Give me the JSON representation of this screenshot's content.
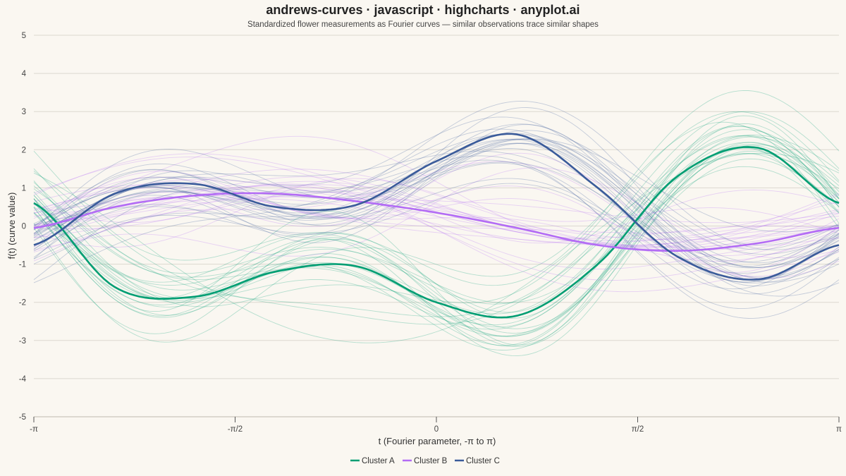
{
  "chart_data": {
    "type": "line",
    "title": "andrews-curves · javascript · highcharts · anyplot.ai",
    "subtitle": "Standardized flower measurements as Fourier curves — similar observations trace similar shapes",
    "xlabel": "t (Fourier parameter, -π to π)",
    "ylabel": "f(t) (curve value)",
    "xlim": [
      -3.14159,
      3.14159
    ],
    "ylim": [
      -5,
      5
    ],
    "x_ticks": [
      {
        "value": -3.14159,
        "label": "-π"
      },
      {
        "value": -1.5708,
        "label": "-π/2"
      },
      {
        "value": 0,
        "label": "0"
      },
      {
        "value": 1.5708,
        "label": "π/2"
      },
      {
        "value": 3.14159,
        "label": "π"
      }
    ],
    "y_ticks": [
      {
        "value": -5,
        "label": "-5"
      },
      {
        "value": -4,
        "label": "-4"
      },
      {
        "value": -3,
        "label": "-3"
      },
      {
        "value": -2,
        "label": "-2"
      },
      {
        "value": -1,
        "label": "-1"
      },
      {
        "value": 0,
        "label": "0"
      },
      {
        "value": 1,
        "label": "1"
      },
      {
        "value": 2,
        "label": "2"
      },
      {
        "value": 3,
        "label": "3"
      },
      {
        "value": 4,
        "label": "4"
      },
      {
        "value": 5,
        "label": "5"
      }
    ],
    "grid": "horizontal",
    "legend_position": "bottom-center",
    "series": [
      {
        "name": "Cluster A",
        "color": "#009e73",
        "mean_curve": {
          "x": [
            -3.14,
            -2.51,
            -1.88,
            -1.26,
            -0.63,
            0,
            0.63,
            1.26,
            1.88,
            2.51,
            3.14
          ],
          "y": [
            0.6,
            -1.6,
            -1.85,
            -1.2,
            -1.05,
            -2.0,
            -2.35,
            -1.0,
            1.3,
            2.05,
            0.6
          ]
        }
      },
      {
        "name": "Cluster B",
        "color": "#b36cf5",
        "mean_curve": {
          "x": [
            -3.14,
            -2.51,
            -1.88,
            -1.26,
            -0.63,
            0,
            0.63,
            1.26,
            1.88,
            2.51,
            3.14
          ],
          "y": [
            -0.05,
            0.5,
            0.8,
            0.85,
            0.65,
            0.35,
            -0.05,
            -0.5,
            -0.65,
            -0.45,
            -0.05
          ]
        }
      },
      {
        "name": "Cluster C",
        "color": "#3a5b9a",
        "mean_curve": {
          "x": [
            -3.14,
            -2.51,
            -1.88,
            -1.26,
            -0.63,
            0,
            0.63,
            1.26,
            1.88,
            2.51,
            3.14
          ],
          "y": [
            -0.5,
            0.85,
            1.1,
            0.5,
            0.55,
            1.7,
            2.4,
            1.0,
            -0.8,
            -1.4,
            -0.5
          ]
        }
      }
    ]
  }
}
